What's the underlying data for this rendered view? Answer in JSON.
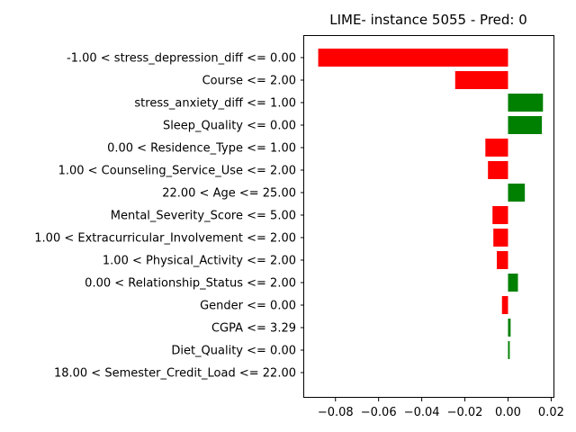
{
  "chart_data": {
    "type": "bar",
    "orientation": "horizontal",
    "title": "LIME- instance 5055 - Pred: 0",
    "categories": [
      "-1.00 < stress_depression_diff <= 0.00",
      "Course <= 2.00",
      "stress_anxiety_diff <= 1.00",
      "Sleep_Quality <= 0.00",
      "0.00 < Residence_Type <= 1.00",
      "1.00 < Counseling_Service_Use <= 2.00",
      "22.00 < Age <= 25.00",
      "Mental_Severity_Score <= 5.00",
      "1.00 < Extracurricular_Involvement <= 2.00",
      "1.00 < Physical_Activity <= 2.00",
      "0.00 < Relationship_Status <= 2.00",
      "Gender <= 0.00",
      "CGPA <= 3.29",
      "Diet_Quality <= 0.00",
      "18.00 < Semester_Credit_Load <= 22.00"
    ],
    "values": [
      -0.088,
      -0.0245,
      0.0162,
      0.0157,
      -0.0105,
      -0.0093,
      0.0078,
      -0.0072,
      -0.0068,
      -0.0052,
      0.0046,
      -0.0028,
      0.0012,
      0.0008,
      0.0
    ],
    "xlim": [
      -0.0945,
      0.0215
    ],
    "xticks": [
      -0.08,
      -0.06,
      -0.04,
      -0.02,
      0.0,
      0.02
    ],
    "xtick_labels": [
      "−0.08",
      "−0.06",
      "−0.04",
      "−0.02",
      "0.00",
      "0.02"
    ],
    "positive_color": "#008000",
    "negative_color": "#ff0000",
    "grid": false
  }
}
